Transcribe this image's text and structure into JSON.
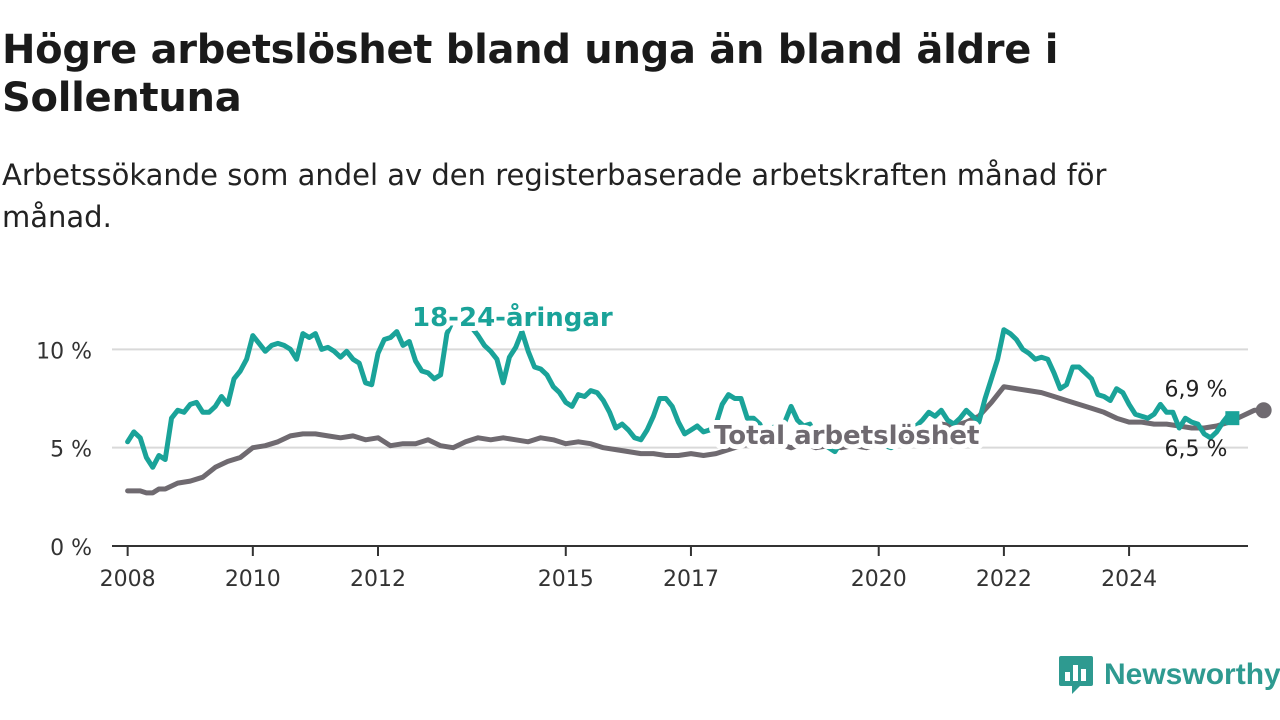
{
  "title": "Högre arbetslöshet bland unga än bland äldre i Sollentuna",
  "subtitle": "Arbetssökande som andel av den registerbaserade arbetskraften månad för månad.",
  "brand": {
    "name": "Newsworthy",
    "icon": "newsworthy-logo-icon"
  },
  "colors": {
    "youth": "#1aa399",
    "total": "#6f6a70",
    "grid": "#d9d9d9",
    "axis": "#333333"
  },
  "chart_data": {
    "type": "line",
    "title": "Högre arbetslöshet bland unga än bland äldre i Sollentuna",
    "xlabel": "",
    "ylabel": "",
    "xlim": [
      2007.75,
      2025.9
    ],
    "ylim": [
      0,
      12
    ],
    "x_ticks": [
      2008,
      2010,
      2012,
      2015,
      2017,
      2020,
      2022,
      2024
    ],
    "x_tick_labels": [
      "2008",
      "2010",
      "2012",
      "2015",
      "2017",
      "2020",
      "2022",
      "2024"
    ],
    "y_ticks": [
      0,
      5,
      10
    ],
    "y_tick_labels": [
      "0 %",
      "5 %",
      "10 %"
    ],
    "grid": "horizontal",
    "series": [
      {
        "name": "18-24-åringar",
        "color": "#1aa399",
        "points": [
          [
            2008.0,
            5.3
          ],
          [
            2008.1,
            5.8
          ],
          [
            2008.2,
            5.5
          ],
          [
            2008.3,
            4.5
          ],
          [
            2008.4,
            4.0
          ],
          [
            2008.5,
            4.6
          ],
          [
            2008.6,
            4.4
          ],
          [
            2008.7,
            6.5
          ],
          [
            2008.8,
            6.9
          ],
          [
            2008.9,
            6.8
          ],
          [
            2009.0,
            7.2
          ],
          [
            2009.1,
            7.3
          ],
          [
            2009.2,
            6.8
          ],
          [
            2009.3,
            6.8
          ],
          [
            2009.4,
            7.1
          ],
          [
            2009.5,
            7.6
          ],
          [
            2009.6,
            7.2
          ],
          [
            2009.7,
            8.5
          ],
          [
            2009.8,
            8.9
          ],
          [
            2009.9,
            9.5
          ],
          [
            2010.0,
            10.7
          ],
          [
            2010.1,
            10.3
          ],
          [
            2010.2,
            9.9
          ],
          [
            2010.3,
            10.2
          ],
          [
            2010.4,
            10.3
          ],
          [
            2010.5,
            10.2
          ],
          [
            2010.6,
            10.0
          ],
          [
            2010.7,
            9.5
          ],
          [
            2010.8,
            10.8
          ],
          [
            2010.9,
            10.6
          ],
          [
            2011.0,
            10.8
          ],
          [
            2011.1,
            10.0
          ],
          [
            2011.2,
            10.1
          ],
          [
            2011.3,
            9.9
          ],
          [
            2011.4,
            9.6
          ],
          [
            2011.5,
            9.9
          ],
          [
            2011.6,
            9.5
          ],
          [
            2011.7,
            9.3
          ],
          [
            2011.8,
            8.3
          ],
          [
            2011.9,
            8.2
          ],
          [
            2012.0,
            9.8
          ],
          [
            2012.1,
            10.5
          ],
          [
            2012.2,
            10.6
          ],
          [
            2012.3,
            10.9
          ],
          [
            2012.4,
            10.2
          ],
          [
            2012.5,
            10.4
          ],
          [
            2012.6,
            9.4
          ],
          [
            2012.7,
            8.9
          ],
          [
            2012.8,
            8.8
          ],
          [
            2012.9,
            8.5
          ],
          [
            2013.0,
            8.7
          ],
          [
            2013.1,
            10.8
          ],
          [
            2013.2,
            11.5
          ],
          [
            2013.3,
            11.8
          ],
          [
            2013.4,
            11.6
          ],
          [
            2013.5,
            11.1
          ],
          [
            2013.6,
            10.7
          ],
          [
            2013.7,
            10.2
          ],
          [
            2013.8,
            9.9
          ],
          [
            2013.9,
            9.5
          ],
          [
            2014.0,
            8.3
          ],
          [
            2014.1,
            9.6
          ],
          [
            2014.2,
            10.1
          ],
          [
            2014.3,
            10.9
          ],
          [
            2014.4,
            9.9
          ],
          [
            2014.5,
            9.1
          ],
          [
            2014.6,
            9.0
          ],
          [
            2014.7,
            8.7
          ],
          [
            2014.8,
            8.1
          ],
          [
            2014.9,
            7.8
          ],
          [
            2015.0,
            7.3
          ],
          [
            2015.1,
            7.1
          ],
          [
            2015.2,
            7.7
          ],
          [
            2015.3,
            7.6
          ],
          [
            2015.4,
            7.9
          ],
          [
            2015.5,
            7.8
          ],
          [
            2015.6,
            7.4
          ],
          [
            2015.7,
            6.8
          ],
          [
            2015.8,
            6.0
          ],
          [
            2015.9,
            6.2
          ],
          [
            2016.0,
            5.9
          ],
          [
            2016.1,
            5.5
          ],
          [
            2016.2,
            5.4
          ],
          [
            2016.3,
            5.9
          ],
          [
            2016.4,
            6.6
          ],
          [
            2016.5,
            7.5
          ],
          [
            2016.6,
            7.5
          ],
          [
            2016.7,
            7.1
          ],
          [
            2016.8,
            6.3
          ],
          [
            2016.9,
            5.7
          ],
          [
            2017.0,
            5.9
          ],
          [
            2017.1,
            6.1
          ],
          [
            2017.2,
            5.8
          ],
          [
            2017.3,
            5.9
          ],
          [
            2017.4,
            6.2
          ],
          [
            2017.5,
            7.2
          ],
          [
            2017.6,
            7.7
          ],
          [
            2017.7,
            7.5
          ],
          [
            2017.8,
            7.5
          ],
          [
            2017.9,
            6.5
          ],
          [
            2018.0,
            6.5
          ],
          [
            2018.1,
            6.2
          ],
          [
            2018.2,
            5.4
          ],
          [
            2018.3,
            6.0
          ],
          [
            2018.4,
            6.2
          ],
          [
            2018.5,
            6.3
          ],
          [
            2018.6,
            7.1
          ],
          [
            2018.7,
            6.4
          ],
          [
            2018.8,
            6.1
          ],
          [
            2018.9,
            6.2
          ],
          [
            2019.0,
            5.5
          ],
          [
            2019.1,
            5.2
          ],
          [
            2019.2,
            5.0
          ],
          [
            2019.3,
            4.8
          ],
          [
            2019.4,
            5.3
          ],
          [
            2019.5,
            5.8
          ],
          [
            2019.6,
            6.0
          ],
          [
            2019.7,
            5.7
          ],
          [
            2019.8,
            5.3
          ],
          [
            2019.9,
            5.6
          ],
          [
            2020.0,
            5.5
          ],
          [
            2020.1,
            5.1
          ],
          [
            2020.2,
            5.0
          ],
          [
            2020.3,
            5.2
          ],
          [
            2020.4,
            5.9
          ],
          [
            2020.5,
            6.2
          ],
          [
            2020.6,
            6.1
          ],
          [
            2020.7,
            6.4
          ],
          [
            2020.8,
            6.8
          ],
          [
            2020.9,
            6.6
          ],
          [
            2021.0,
            6.9
          ],
          [
            2021.1,
            6.4
          ],
          [
            2021.2,
            6.2
          ],
          [
            2021.3,
            6.5
          ],
          [
            2021.4,
            6.9
          ],
          [
            2021.5,
            6.6
          ],
          [
            2021.6,
            6.3
          ],
          [
            2021.7,
            7.5
          ],
          [
            2021.8,
            8.5
          ],
          [
            2021.9,
            9.5
          ],
          [
            2022.0,
            11.0
          ],
          [
            2022.1,
            10.8
          ],
          [
            2022.2,
            10.5
          ],
          [
            2022.3,
            10.0
          ],
          [
            2022.4,
            9.8
          ],
          [
            2022.5,
            9.5
          ],
          [
            2022.6,
            9.6
          ],
          [
            2022.7,
            9.5
          ],
          [
            2022.8,
            8.8
          ],
          [
            2022.9,
            8.0
          ],
          [
            2023.0,
            8.2
          ],
          [
            2023.1,
            9.1
          ],
          [
            2023.2,
            9.1
          ],
          [
            2023.3,
            8.8
          ],
          [
            2023.4,
            8.5
          ],
          [
            2023.5,
            7.7
          ],
          [
            2023.6,
            7.6
          ],
          [
            2023.7,
            7.4
          ],
          [
            2023.8,
            8.0
          ],
          [
            2023.9,
            7.8
          ],
          [
            2024.0,
            7.2
          ],
          [
            2024.1,
            6.7
          ],
          [
            2024.2,
            6.6
          ],
          [
            2024.3,
            6.5
          ],
          [
            2024.4,
            6.7
          ],
          [
            2024.5,
            7.2
          ],
          [
            2024.6,
            6.8
          ],
          [
            2024.7,
            6.8
          ],
          [
            2024.8,
            6.0
          ],
          [
            2024.9,
            6.5
          ],
          [
            2025.0,
            6.3
          ],
          [
            2025.1,
            6.2
          ],
          [
            2025.2,
            5.7
          ],
          [
            2025.3,
            5.5
          ],
          [
            2025.4,
            5.8
          ],
          [
            2025.5,
            6.3
          ],
          [
            2025.6,
            6.7
          ],
          [
            2025.65,
            6.5
          ]
        ],
        "end_label": "6,5 %"
      },
      {
        "name": "Total arbetslöshet",
        "color": "#6f6a70",
        "points": [
          [
            2008.0,
            2.8
          ],
          [
            2008.2,
            2.8
          ],
          [
            2008.3,
            2.7
          ],
          [
            2008.4,
            2.7
          ],
          [
            2008.5,
            2.9
          ],
          [
            2008.6,
            2.9
          ],
          [
            2008.8,
            3.2
          ],
          [
            2009.0,
            3.3
          ],
          [
            2009.2,
            3.5
          ],
          [
            2009.4,
            4.0
          ],
          [
            2009.6,
            4.3
          ],
          [
            2009.8,
            4.5
          ],
          [
            2010.0,
            5.0
          ],
          [
            2010.2,
            5.1
          ],
          [
            2010.4,
            5.3
          ],
          [
            2010.6,
            5.6
          ],
          [
            2010.8,
            5.7
          ],
          [
            2011.0,
            5.7
          ],
          [
            2011.2,
            5.6
          ],
          [
            2011.4,
            5.5
          ],
          [
            2011.6,
            5.6
          ],
          [
            2011.8,
            5.4
          ],
          [
            2012.0,
            5.5
          ],
          [
            2012.2,
            5.1
          ],
          [
            2012.4,
            5.2
          ],
          [
            2012.6,
            5.2
          ],
          [
            2012.8,
            5.4
          ],
          [
            2013.0,
            5.1
          ],
          [
            2013.2,
            5.0
          ],
          [
            2013.4,
            5.3
          ],
          [
            2013.6,
            5.5
          ],
          [
            2013.8,
            5.4
          ],
          [
            2014.0,
            5.5
          ],
          [
            2014.2,
            5.4
          ],
          [
            2014.4,
            5.3
          ],
          [
            2014.6,
            5.5
          ],
          [
            2014.8,
            5.4
          ],
          [
            2015.0,
            5.2
          ],
          [
            2015.2,
            5.3
          ],
          [
            2015.4,
            5.2
          ],
          [
            2015.6,
            5.0
          ],
          [
            2015.8,
            4.9
          ],
          [
            2016.0,
            4.8
          ],
          [
            2016.2,
            4.7
          ],
          [
            2016.4,
            4.7
          ],
          [
            2016.6,
            4.6
          ],
          [
            2016.8,
            4.6
          ],
          [
            2017.0,
            4.7
          ],
          [
            2017.2,
            4.6
          ],
          [
            2017.4,
            4.7
          ],
          [
            2017.6,
            4.9
          ],
          [
            2017.8,
            5.1
          ],
          [
            2018.0,
            5.2
          ],
          [
            2018.2,
            5.1
          ],
          [
            2018.4,
            5.2
          ],
          [
            2018.6,
            5.0
          ],
          [
            2018.8,
            5.2
          ],
          [
            2019.0,
            5.0
          ],
          [
            2019.2,
            5.1
          ],
          [
            2019.4,
            5.0
          ],
          [
            2019.6,
            5.1
          ],
          [
            2019.8,
            5.0
          ],
          [
            2020.0,
            5.2
          ],
          [
            2020.2,
            5.3
          ],
          [
            2020.4,
            5.4
          ],
          [
            2020.6,
            5.5
          ],
          [
            2020.8,
            6.0
          ],
          [
            2021.0,
            6.2
          ],
          [
            2021.2,
            6.1
          ],
          [
            2021.4,
            6.3
          ],
          [
            2021.6,
            6.6
          ],
          [
            2021.8,
            7.3
          ],
          [
            2022.0,
            8.1
          ],
          [
            2022.2,
            8.0
          ],
          [
            2022.4,
            7.9
          ],
          [
            2022.6,
            7.8
          ],
          [
            2022.8,
            7.6
          ],
          [
            2023.0,
            7.4
          ],
          [
            2023.2,
            7.2
          ],
          [
            2023.4,
            7.0
          ],
          [
            2023.6,
            6.8
          ],
          [
            2023.8,
            6.5
          ],
          [
            2024.0,
            6.3
          ],
          [
            2024.2,
            6.3
          ],
          [
            2024.4,
            6.2
          ],
          [
            2024.6,
            6.2
          ],
          [
            2024.8,
            6.1
          ],
          [
            2025.0,
            6.0
          ],
          [
            2025.2,
            6.0
          ],
          [
            2025.4,
            6.1
          ],
          [
            2025.6,
            6.3
          ],
          [
            2025.8,
            6.6
          ],
          [
            2026.0,
            6.9
          ],
          [
            2026.15,
            6.9
          ]
        ],
        "end_label": "6,9 %"
      }
    ]
  }
}
